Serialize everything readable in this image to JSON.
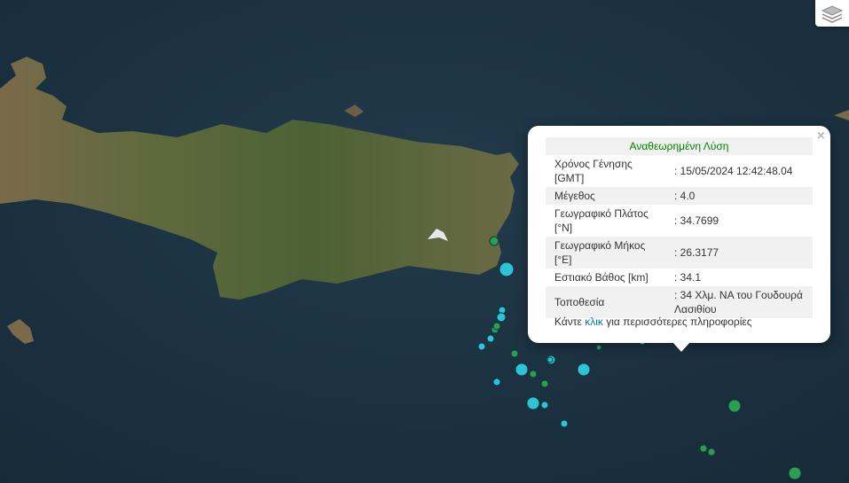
{
  "popup": {
    "title": "Αναθεωρημένη Λύση",
    "close": "×",
    "rows": [
      {
        "label": "Χρόνος Γένησης [GMT]",
        "value": ": 15/05/2024 12:42:48.04"
      },
      {
        "label": "Μέγεθος",
        "value": ": 4.0"
      },
      {
        "label": "Γεωγραφικό Πλάτος [°N]",
        "value": ": 34.7699"
      },
      {
        "label": "Γεωγραφικό Μήκος [°E]",
        "value": ": 26.3177"
      },
      {
        "label": "Εστιακό Βάθος [km]",
        "value": ": 34.1"
      },
      {
        "label": "Τοποθεσία",
        "value": ": 34 Χλμ. ΝΑ του Γουδουρά Λασιθίου"
      }
    ],
    "more_prefix": "Κάντε ",
    "more_link": "κλικ",
    "more_suffix": " για περισσότερες πληροφορίες"
  },
  "controls": {
    "layers_icon": "layers-icon"
  },
  "colors": {
    "sea": "#1c3140",
    "marker_recent": "#2ec4d6",
    "marker_older": "#2e9e4e",
    "revised_title": "#008000"
  }
}
